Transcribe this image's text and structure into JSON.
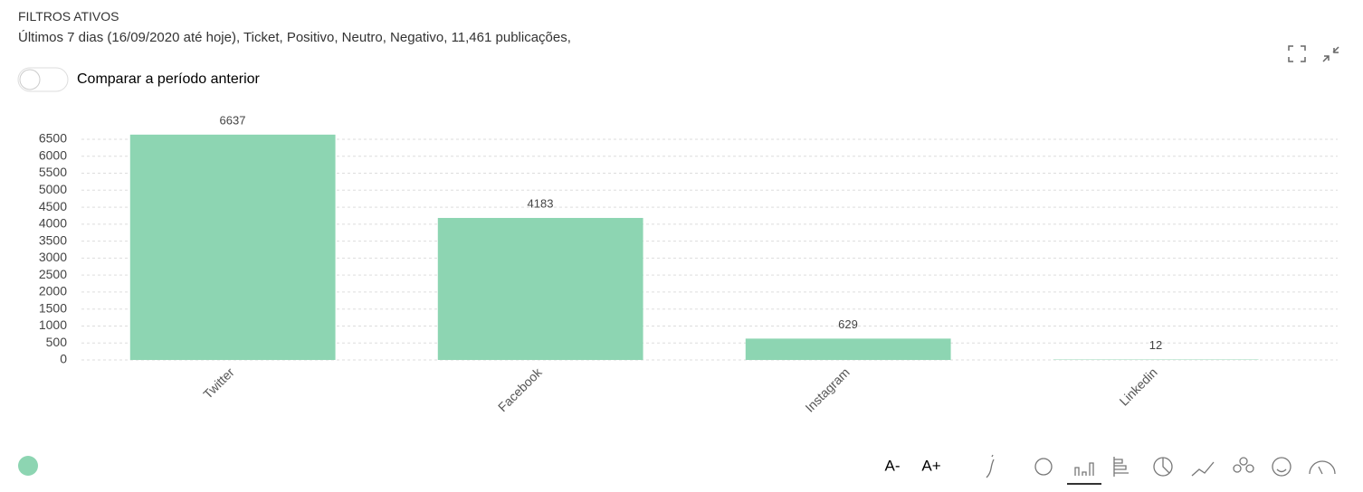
{
  "header": {
    "title": "FILTROS ATIVOS",
    "subtitle": "Últimos 7 dias (16/09/2020 até hoje), Ticket, Positivo, Neutro, Negativo, 11,461 publicações,"
  },
  "toggle": {
    "label": "Comparar a período anterior"
  },
  "toolbar": {
    "font_smaller": "A-",
    "font_larger": "A+"
  },
  "chart_data": {
    "type": "bar",
    "categories": [
      "Twitter",
      "Facebook",
      "Instagram",
      "Linkedin"
    ],
    "values": [
      6637,
      4183,
      629,
      12
    ],
    "color": "#8dd5b2",
    "ylim": [
      0,
      6500
    ],
    "yticks": [
      0,
      500,
      1000,
      1500,
      2000,
      2500,
      3000,
      3500,
      4000,
      4500,
      5000,
      5500,
      6000,
      6500
    ],
    "grid": true
  }
}
